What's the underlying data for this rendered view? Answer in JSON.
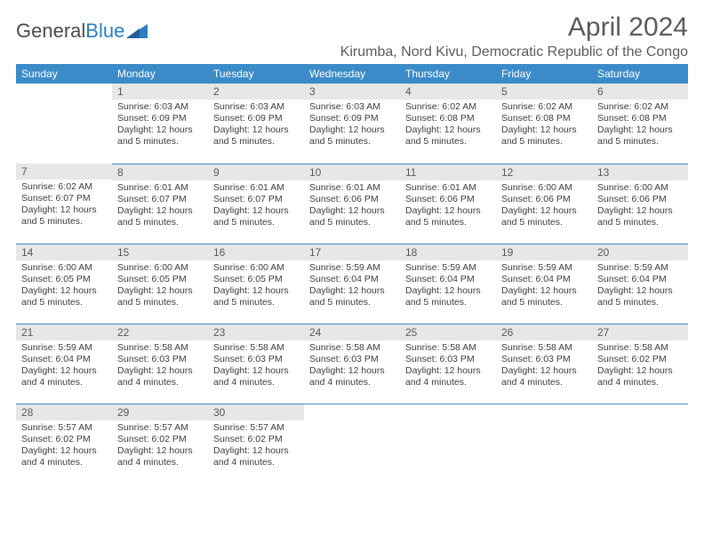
{
  "logo": {
    "general": "General",
    "blue": "Blue"
  },
  "title": "April 2024",
  "subtitle": "Kirumba, Nord Kivu, Democratic Republic of the Congo",
  "colors": {
    "header_bg": "#3b8bc8",
    "header_fg": "#ffffff",
    "daynum_bg": "#e7e7e7",
    "rule": "#3b8bc8",
    "text": "#3d3d3d"
  },
  "weekdays": [
    "Sunday",
    "Monday",
    "Tuesday",
    "Wednesday",
    "Thursday",
    "Friday",
    "Saturday"
  ],
  "weeks": [
    [
      null,
      {
        "n": "1",
        "sr": "6:03 AM",
        "ss": "6:09 PM",
        "dl": "12 hours and 5 minutes."
      },
      {
        "n": "2",
        "sr": "6:03 AM",
        "ss": "6:09 PM",
        "dl": "12 hours and 5 minutes."
      },
      {
        "n": "3",
        "sr": "6:03 AM",
        "ss": "6:09 PM",
        "dl": "12 hours and 5 minutes."
      },
      {
        "n": "4",
        "sr": "6:02 AM",
        "ss": "6:08 PM",
        "dl": "12 hours and 5 minutes."
      },
      {
        "n": "5",
        "sr": "6:02 AM",
        "ss": "6:08 PM",
        "dl": "12 hours and 5 minutes."
      },
      {
        "n": "6",
        "sr": "6:02 AM",
        "ss": "6:08 PM",
        "dl": "12 hours and 5 minutes."
      }
    ],
    [
      {
        "n": "7",
        "sr": "6:02 AM",
        "ss": "6:07 PM",
        "dl": "12 hours and 5 minutes."
      },
      {
        "n": "8",
        "sr": "6:01 AM",
        "ss": "6:07 PM",
        "dl": "12 hours and 5 minutes."
      },
      {
        "n": "9",
        "sr": "6:01 AM",
        "ss": "6:07 PM",
        "dl": "12 hours and 5 minutes."
      },
      {
        "n": "10",
        "sr": "6:01 AM",
        "ss": "6:06 PM",
        "dl": "12 hours and 5 minutes."
      },
      {
        "n": "11",
        "sr": "6:01 AM",
        "ss": "6:06 PM",
        "dl": "12 hours and 5 minutes."
      },
      {
        "n": "12",
        "sr": "6:00 AM",
        "ss": "6:06 PM",
        "dl": "12 hours and 5 minutes."
      },
      {
        "n": "13",
        "sr": "6:00 AM",
        "ss": "6:06 PM",
        "dl": "12 hours and 5 minutes."
      }
    ],
    [
      {
        "n": "14",
        "sr": "6:00 AM",
        "ss": "6:05 PM",
        "dl": "12 hours and 5 minutes."
      },
      {
        "n": "15",
        "sr": "6:00 AM",
        "ss": "6:05 PM",
        "dl": "12 hours and 5 minutes."
      },
      {
        "n": "16",
        "sr": "6:00 AM",
        "ss": "6:05 PM",
        "dl": "12 hours and 5 minutes."
      },
      {
        "n": "17",
        "sr": "5:59 AM",
        "ss": "6:04 PM",
        "dl": "12 hours and 5 minutes."
      },
      {
        "n": "18",
        "sr": "5:59 AM",
        "ss": "6:04 PM",
        "dl": "12 hours and 5 minutes."
      },
      {
        "n": "19",
        "sr": "5:59 AM",
        "ss": "6:04 PM",
        "dl": "12 hours and 5 minutes."
      },
      {
        "n": "20",
        "sr": "5:59 AM",
        "ss": "6:04 PM",
        "dl": "12 hours and 5 minutes."
      }
    ],
    [
      {
        "n": "21",
        "sr": "5:59 AM",
        "ss": "6:04 PM",
        "dl": "12 hours and 4 minutes."
      },
      {
        "n": "22",
        "sr": "5:58 AM",
        "ss": "6:03 PM",
        "dl": "12 hours and 4 minutes."
      },
      {
        "n": "23",
        "sr": "5:58 AM",
        "ss": "6:03 PM",
        "dl": "12 hours and 4 minutes."
      },
      {
        "n": "24",
        "sr": "5:58 AM",
        "ss": "6:03 PM",
        "dl": "12 hours and 4 minutes."
      },
      {
        "n": "25",
        "sr": "5:58 AM",
        "ss": "6:03 PM",
        "dl": "12 hours and 4 minutes."
      },
      {
        "n": "26",
        "sr": "5:58 AM",
        "ss": "6:03 PM",
        "dl": "12 hours and 4 minutes."
      },
      {
        "n": "27",
        "sr": "5:58 AM",
        "ss": "6:02 PM",
        "dl": "12 hours and 4 minutes."
      }
    ],
    [
      {
        "n": "28",
        "sr": "5:57 AM",
        "ss": "6:02 PM",
        "dl": "12 hours and 4 minutes."
      },
      {
        "n": "29",
        "sr": "5:57 AM",
        "ss": "6:02 PM",
        "dl": "12 hours and 4 minutes."
      },
      {
        "n": "30",
        "sr": "5:57 AM",
        "ss": "6:02 PM",
        "dl": "12 hours and 4 minutes."
      },
      null,
      null,
      null,
      null
    ]
  ],
  "labels": {
    "sunrise": "Sunrise:",
    "sunset": "Sunset:",
    "daylight": "Daylight:"
  }
}
